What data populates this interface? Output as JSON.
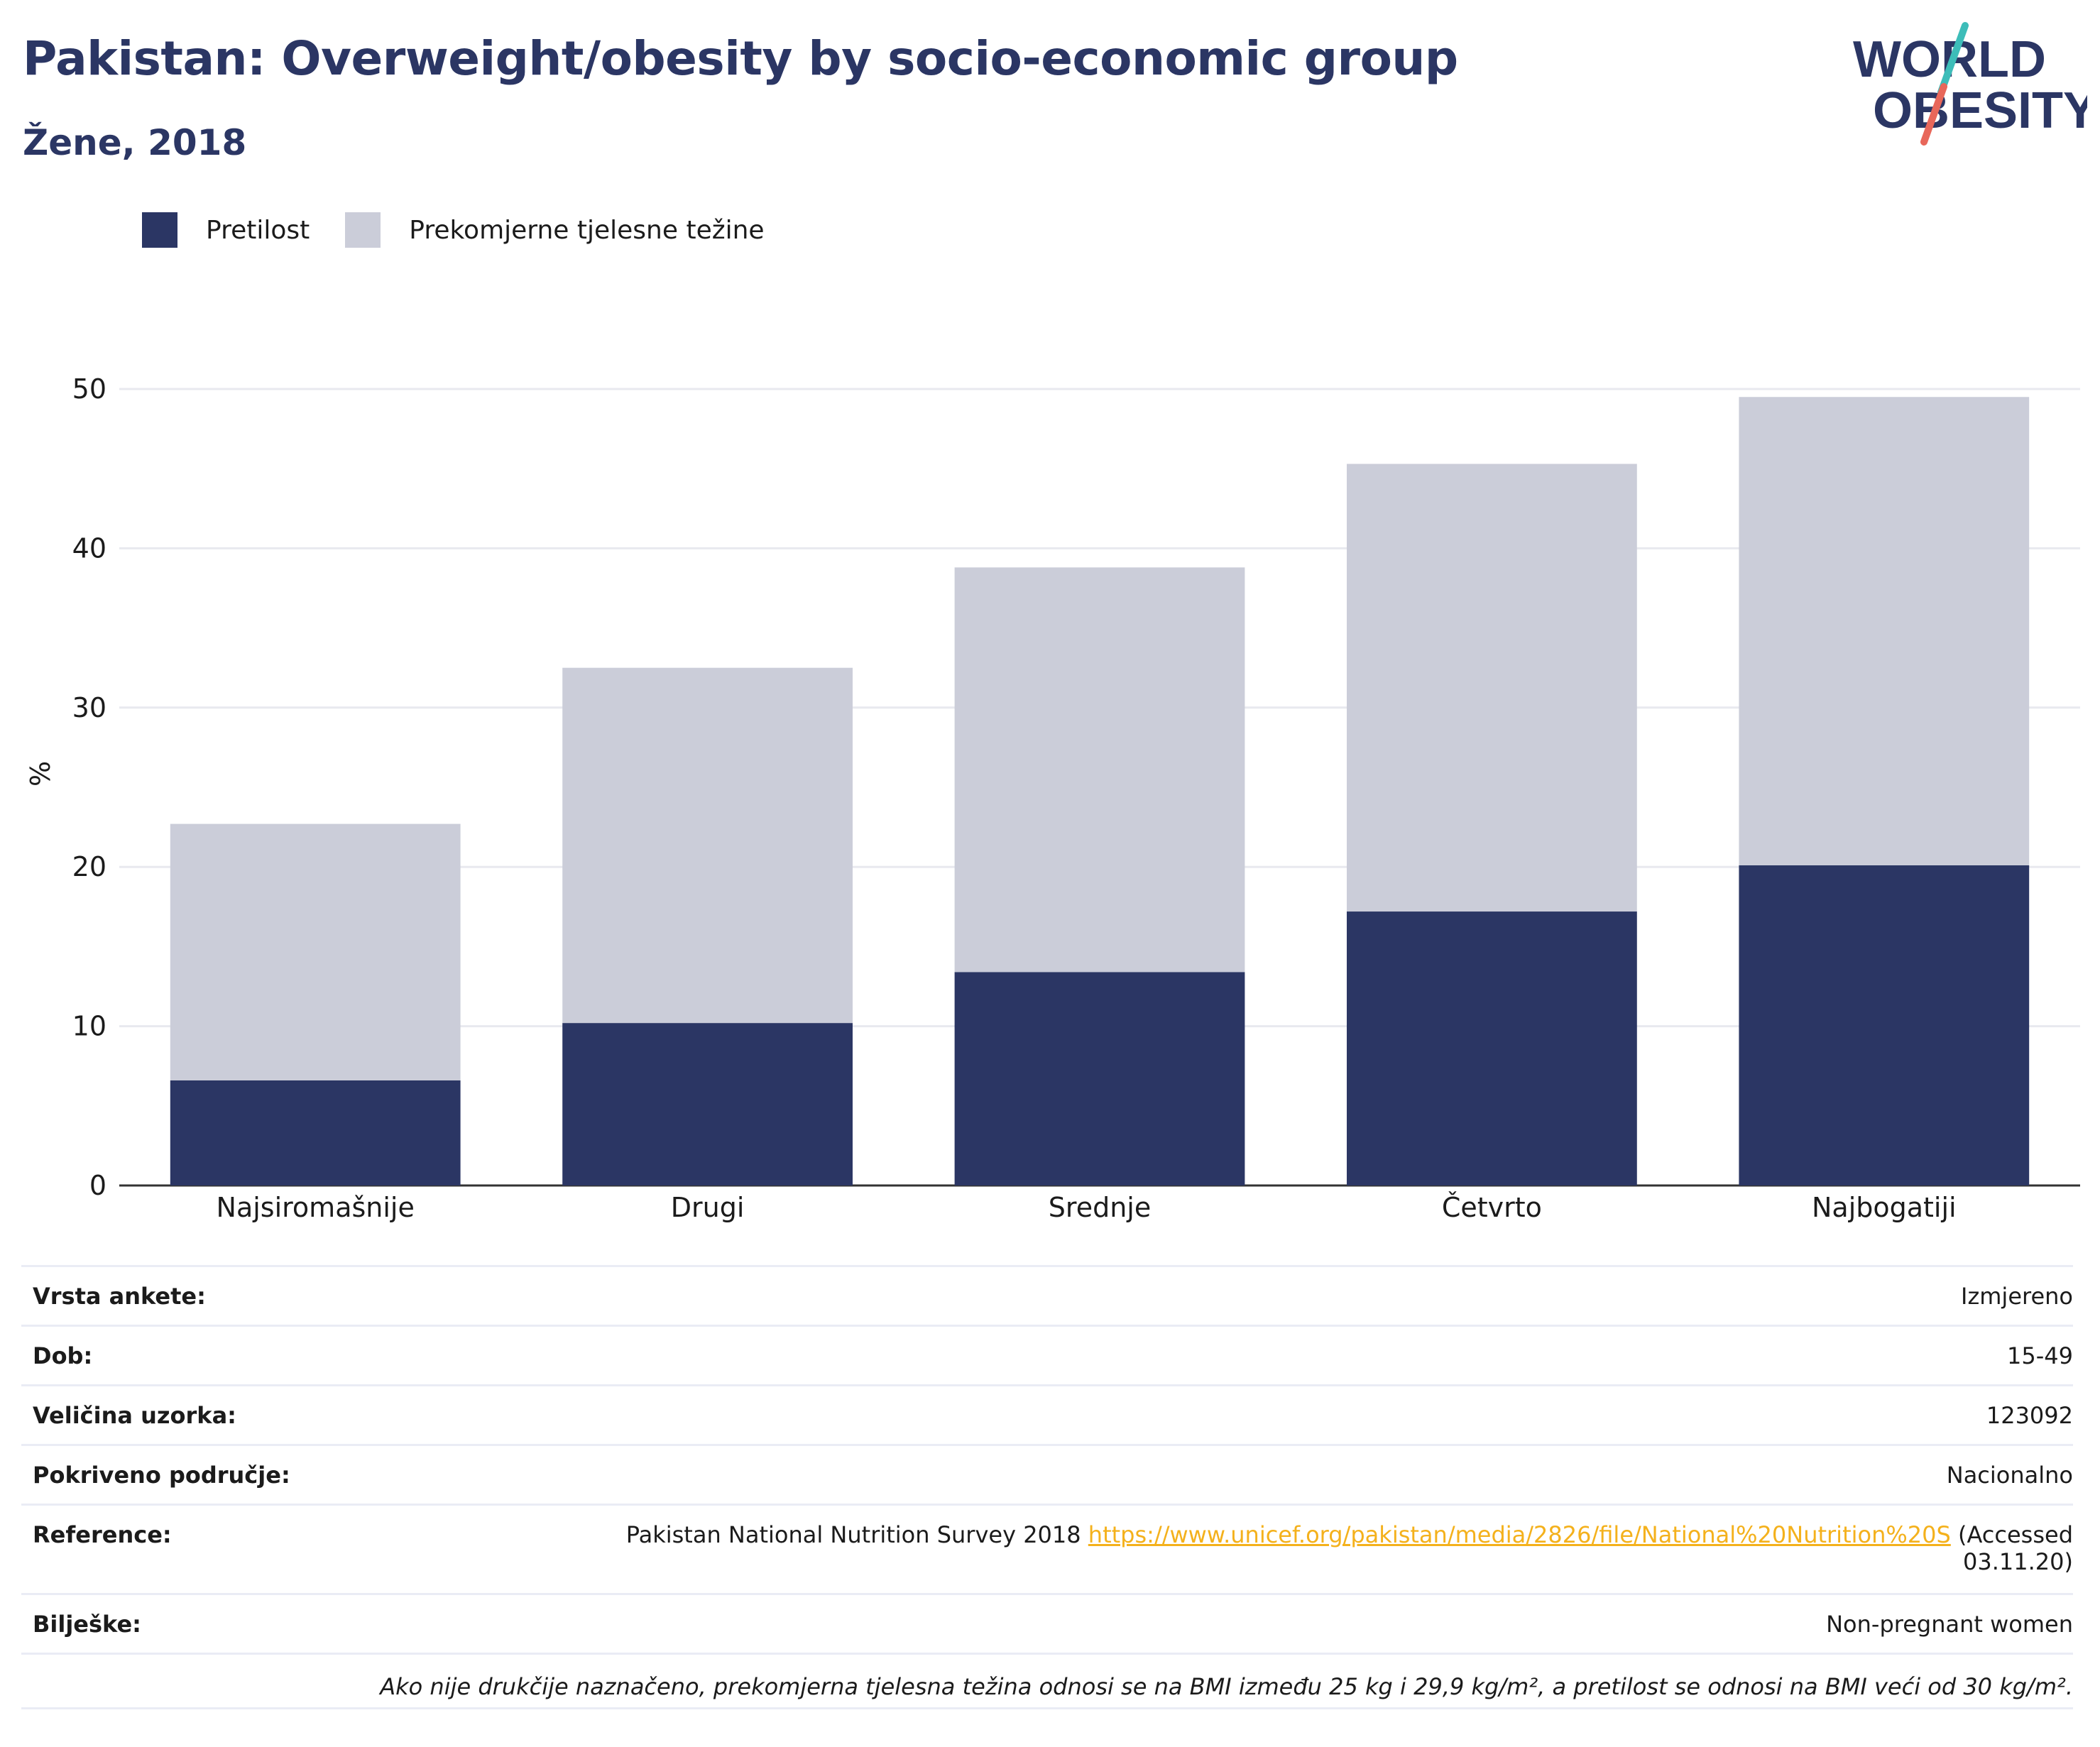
{
  "title": "Pakistan: Overweight/obesity by socio-economic group",
  "subtitle": "Žene, 2018",
  "logo": {
    "line1": "WORLD",
    "line2": "OBESITY"
  },
  "colors": {
    "obesity": "#2b3664",
    "overweight": "#cbcdd9",
    "title": "#2b3664",
    "link": "#f4b11c",
    "accent_teal": "#3dbdb9",
    "accent_red": "#e8675a"
  },
  "legend": [
    {
      "label": "Pretilost",
      "color": "#2b3664"
    },
    {
      "label": "Prekomjerne tjelesne težine",
      "color": "#cbcdd9"
    }
  ],
  "chart_data": {
    "type": "bar",
    "stacked": true,
    "categories": [
      "Najsiromašnije",
      "Drugi",
      "Srednje",
      "Četvrto",
      "Najbogatiji"
    ],
    "series": [
      {
        "name": "Pretilost",
        "values": [
          6.6,
          10.2,
          13.4,
          17.2,
          20.1
        ]
      },
      {
        "name": "Prekomjerne tjelesne težine",
        "values": [
          16.1,
          22.3,
          25.4,
          28.1,
          29.4
        ]
      }
    ],
    "ylabel": "%",
    "ylim": [
      0,
      50
    ],
    "yticks": [
      0,
      10,
      20,
      30,
      40,
      50
    ],
    "grid": true,
    "legend_position": "top-left"
  },
  "info": [
    {
      "label": "Vrsta ankete:",
      "value": "Izmjereno"
    },
    {
      "label": "Dob:",
      "value": "15-49"
    },
    {
      "label": "Veličina uzorka:",
      "value": "123092"
    },
    {
      "label": "Pokriveno područje:",
      "value": "Nacionalno"
    }
  ],
  "reference": {
    "label": "Reference:",
    "text_before": "Pakistan National Nutrition Survey 2018 ",
    "link": "https://www.unicef.org/pakistan/media/2826/file/National%20Nutrition%20S",
    "text_after": " (Accessed",
    "text_line2": "03.11.20)"
  },
  "notes": {
    "label": "Bilješke:",
    "value": "Non-pregnant women"
  },
  "footnote": "Ako nije drukčije naznačeno, prekomjerna tjelesna težina odnosi se na BMI između 25 kg i 29,9 kg/m², a pretilost se odnosi na BMI veći od 30 kg/m²."
}
